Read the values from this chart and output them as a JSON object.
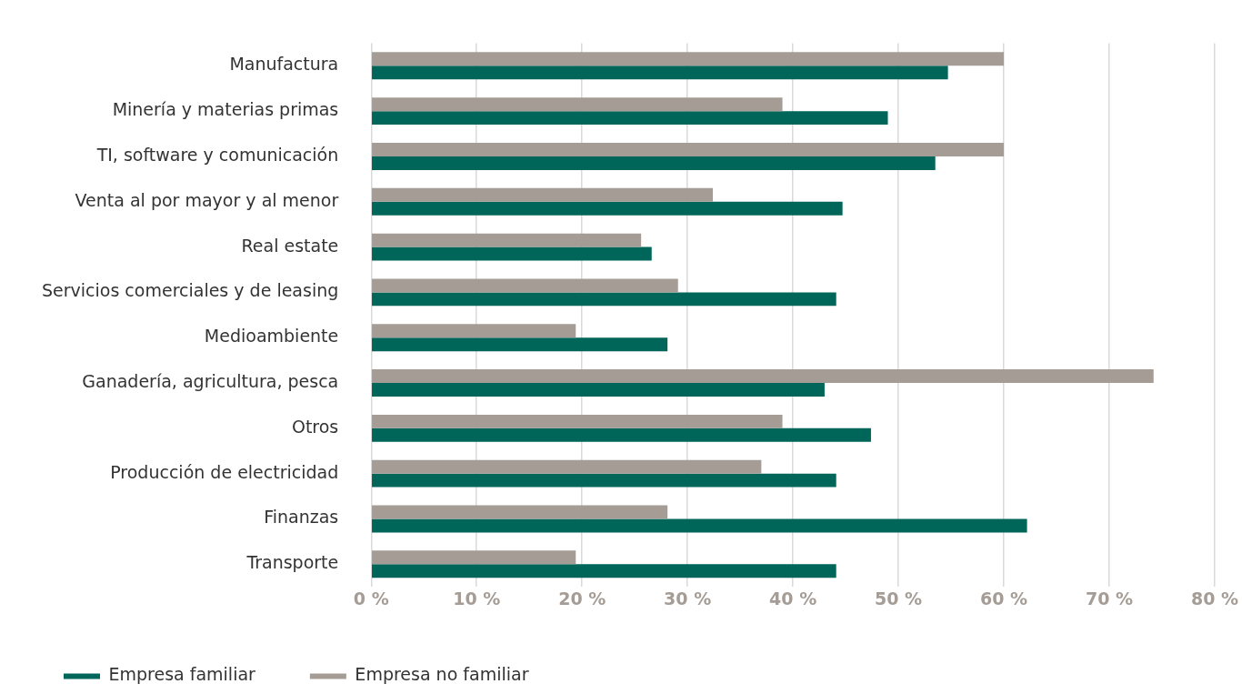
{
  "chart_data": {
    "type": "bar",
    "orientation": "horizontal",
    "categories": [
      "Manufactura",
      "Minería y materias primas",
      "TI, software y comunicación",
      "Venta al por mayor y al menor",
      "Real estate",
      "Servicios comerciales y de leasing",
      "Medioambiente",
      "Ganadería, agricultura, pesca",
      "Otros",
      "Producción de electricidad",
      "Finanzas",
      "Transporte"
    ],
    "series": [
      {
        "name": "Empresa familiar",
        "color": "#00665a",
        "values": [
          54.7,
          49.0,
          53.5,
          44.7,
          26.6,
          44.1,
          28.1,
          43.0,
          47.4,
          44.1,
          62.2,
          44.1
        ]
      },
      {
        "name": "Empresa no familiar",
        "color": "#a59d95",
        "values": [
          60.0,
          39.0,
          60.0,
          32.4,
          25.6,
          29.1,
          19.4,
          74.2,
          39.0,
          37.0,
          28.1,
          19.4
        ]
      }
    ],
    "xlim": [
      0,
      80
    ],
    "xticks": [
      {
        "value": 0,
        "label": "0 %"
      },
      {
        "value": 10,
        "label": "10 %"
      },
      {
        "value": 20,
        "label": "20 %"
      },
      {
        "value": 30,
        "label": "30 %"
      },
      {
        "value": 40,
        "label": "40 %"
      },
      {
        "value": 50,
        "label": "50 %"
      },
      {
        "value": 60,
        "label": "60 %"
      },
      {
        "value": 70,
        "label": "70 %"
      },
      {
        "value": 80,
        "label": "80 %"
      }
    ],
    "grid": "x",
    "legend": "bottom left"
  }
}
